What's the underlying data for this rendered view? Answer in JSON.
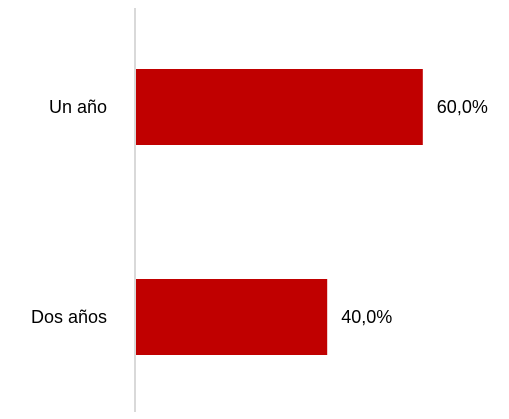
{
  "chart_data": {
    "type": "bar",
    "orientation": "horizontal",
    "categories": [
      "Un año",
      "Dos años"
    ],
    "values": [
      60.0,
      40.0
    ],
    "value_labels": [
      "60,0%",
      "40,0%"
    ],
    "title": "",
    "xlabel": "",
    "ylabel": "",
    "xlim": [
      0,
      100
    ],
    "grid": false,
    "legend": "none",
    "colors": {
      "bar": "#C00000",
      "axis": "#D9D9D9",
      "text": "#000000"
    }
  }
}
